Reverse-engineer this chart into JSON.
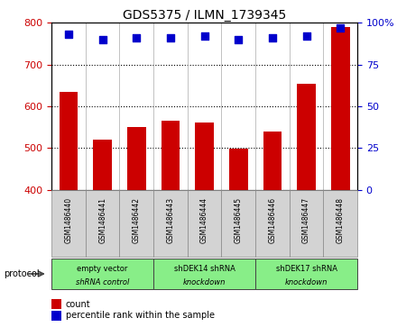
{
  "title": "GDS5375 / ILMN_1739345",
  "samples": [
    "GSM1486440",
    "GSM1486441",
    "GSM1486442",
    "GSM1486443",
    "GSM1486444",
    "GSM1486445",
    "GSM1486446",
    "GSM1486447",
    "GSM1486448"
  ],
  "counts": [
    635,
    520,
    550,
    565,
    560,
    498,
    540,
    655,
    790
  ],
  "percentile_ranks": [
    93,
    90,
    91,
    91,
    92,
    90,
    91,
    92,
    97
  ],
  "ylim_left": [
    400,
    800
  ],
  "ylim_right": [
    0,
    100
  ],
  "yticks_left": [
    400,
    500,
    600,
    700,
    800
  ],
  "yticks_right": [
    0,
    25,
    50,
    75,
    100
  ],
  "bar_color": "#cc0000",
  "dot_color": "#0000cc",
  "bar_bottom": 400,
  "protocols": [
    {
      "label": "empty vector\nshRNA control",
      "start": 0,
      "end": 3
    },
    {
      "label": "shDEK14 shRNA\nknockdown",
      "start": 3,
      "end": 6
    },
    {
      "label": "shDEK17 shRNA\nknockdown",
      "start": 6,
      "end": 9
    }
  ],
  "legend_count_label": "count",
  "legend_pct_label": "percentile rank within the sample",
  "protocol_label": "protocol",
  "sample_box_color": "#d3d3d3",
  "protocol_box_color": "#88ee88",
  "protocol_box_edge": "#444444"
}
